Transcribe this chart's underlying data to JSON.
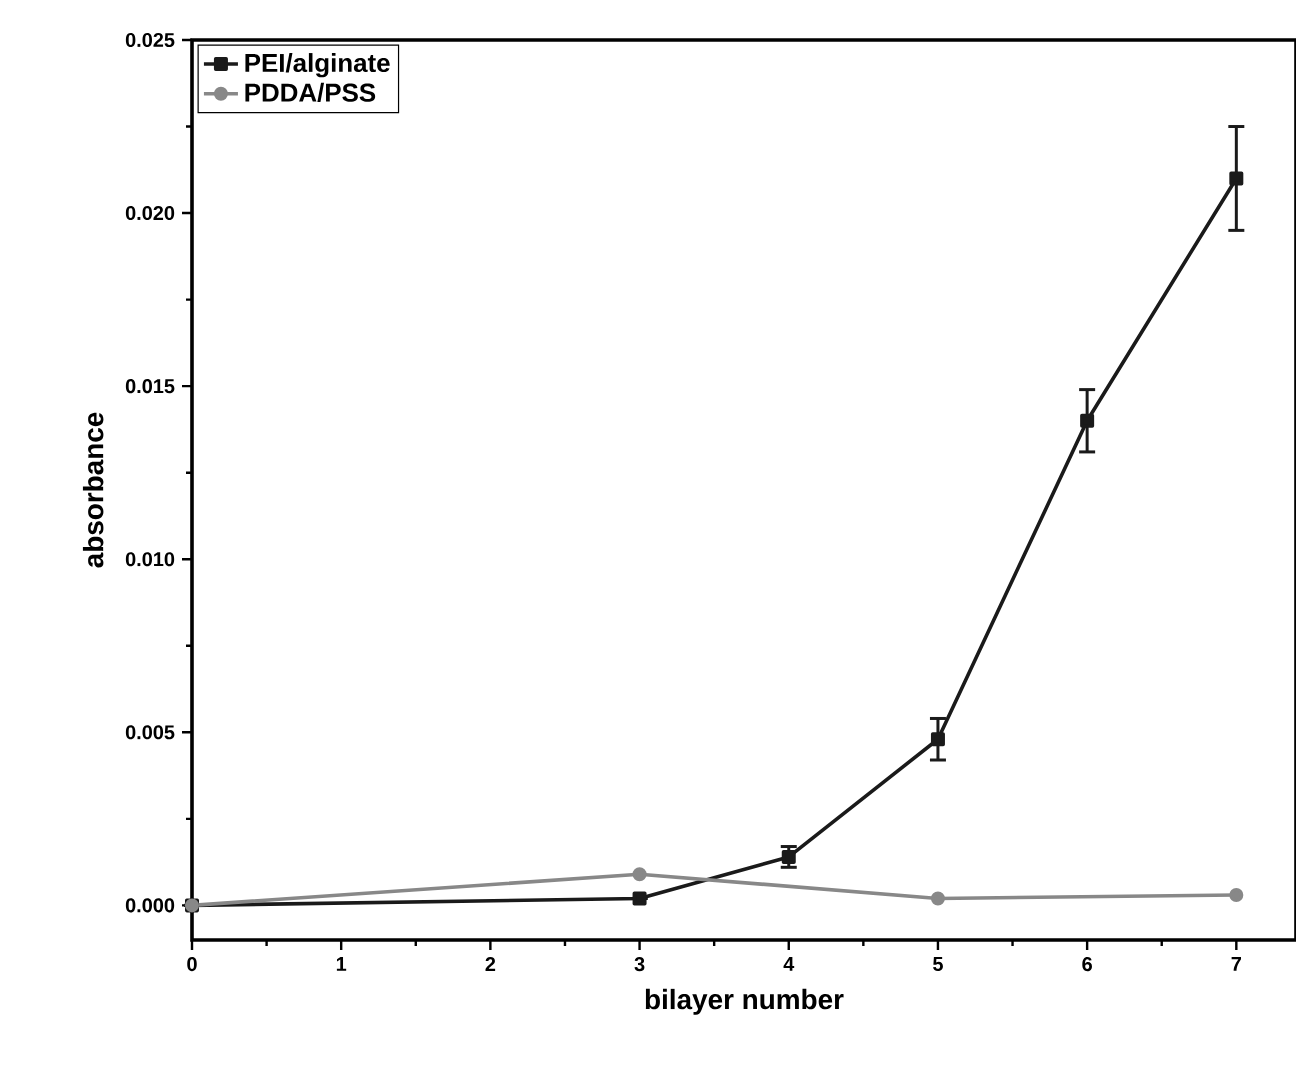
{
  "chart_data": {
    "type": "line",
    "xlabel": "bilayer number",
    "ylabel": "absorbance",
    "xlim": [
      0,
      7.4
    ],
    "ylim": [
      -0.001,
      0.025
    ],
    "xticks": [
      0,
      1,
      2,
      3,
      4,
      5,
      6,
      7
    ],
    "yticks": [
      {
        "value": 0,
        "label": "0.000"
      },
      {
        "value": 0.005,
        "label": "0.005"
      },
      {
        "value": 0.01,
        "label": "0.010"
      },
      {
        "value": 0.015,
        "label": "0.015"
      },
      {
        "value": 0.02,
        "label": "0.020"
      },
      {
        "value": 0.025,
        "label": "0.025"
      }
    ],
    "legend": "top left",
    "line_style": "solid",
    "series": [
      {
        "name": "PEI/alginate",
        "color": "#1a1a1a",
        "marker": "square",
        "x": [
          0,
          3,
          4,
          5,
          6,
          7
        ],
        "values": [
          0,
          0.0002,
          0.0014,
          0.0048,
          0.014,
          0.021
        ],
        "errors": [
          null,
          null,
          0.0003,
          0.0006,
          0.0009,
          0.0015
        ]
      },
      {
        "name": "PDDA/PSS",
        "color": "#888888",
        "marker": "circle",
        "x": [
          0,
          3,
          5,
          7
        ],
        "values": [
          0,
          0.0009,
          0.0002,
          0.0003
        ]
      }
    ]
  }
}
